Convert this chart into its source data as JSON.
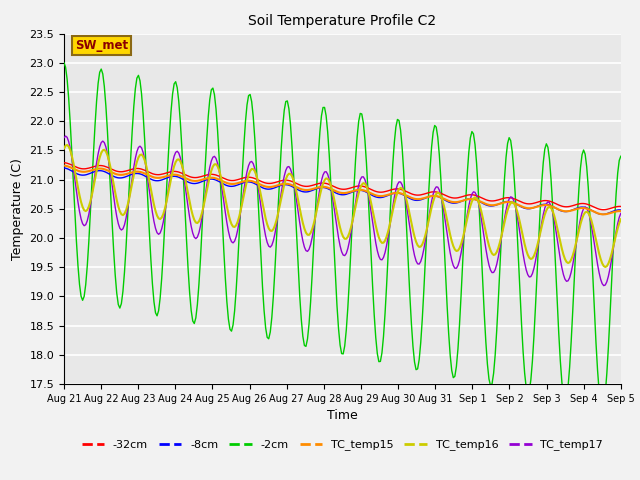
{
  "title": "Soil Temperature Profile C2",
  "xlabel": "Time",
  "ylabel": "Temperature (C)",
  "ylim": [
    17.5,
    23.5
  ],
  "annotation": "SW_met",
  "annotation_color": "#8B0000",
  "annotation_bg": "#FFD700",
  "annotation_border": "#8B6914",
  "background_color": "#E8E8E8",
  "grid_color": "#FFFFFF",
  "series_colors": {
    "neg32cm": "#FF0000",
    "neg8cm": "#0000FF",
    "neg2cm": "#00CC00",
    "TC_temp15": "#FF8C00",
    "TC_temp16": "#CCCC00",
    "TC_temp17": "#9400D3"
  },
  "legend_labels": [
    "-32cm",
    "-8cm",
    "-2cm",
    "TC_temp15",
    "TC_temp16",
    "TC_temp17"
  ],
  "legend_colors": [
    "#FF0000",
    "#0000FF",
    "#00CC00",
    "#FF8C00",
    "#CCCC00",
    "#9400D3"
  ],
  "x_tick_labels": [
    "Aug 21",
    "Aug 22",
    "Aug 23",
    "Aug 24",
    "Aug 25",
    "Aug 26",
    "Aug 27",
    "Aug 28",
    "Aug 29",
    "Aug 30",
    "Aug 31",
    "Sep 1",
    "Sep 2",
    "Sep 3",
    "Sep 4",
    "Sep 5"
  ],
  "figsize": [
    6.4,
    4.8
  ],
  "dpi": 100
}
